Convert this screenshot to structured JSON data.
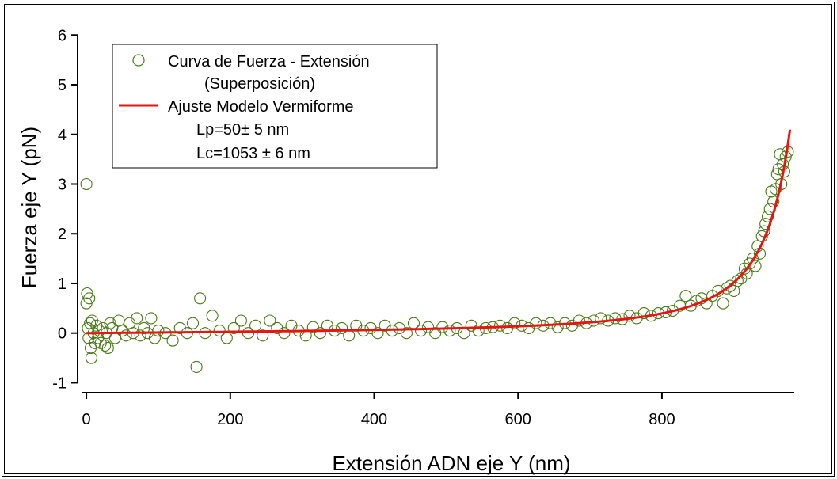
{
  "chart_data": {
    "type": "scatter",
    "xlabel": "Extensión ADN eje Y (nm)",
    "ylabel": "Fuerza eje Y (pN)",
    "xlim": [
      -10,
      985
    ],
    "ylim": [
      -1.2,
      6.1
    ],
    "xticks": [
      0,
      200,
      400,
      600,
      800
    ],
    "yticks": [
      -1,
      0,
      1,
      2,
      3,
      4,
      5,
      6
    ],
    "grid": false,
    "legend": {
      "placement": "top-left",
      "entries": [
        {
          "label": "Curva de Fuerza - Extensión",
          "label2": "(Superposición)",
          "marker": "open-circle"
        },
        {
          "label": "Ajuste Modelo Vermiforme",
          "marker": "line"
        }
      ],
      "annotations": [
        "Lp=50± 5 nm",
        "Lc=1053 ± 6 nm"
      ]
    },
    "series": [
      {
        "name": "Curva de Fuerza - Extensión",
        "label2": "(Superposición)",
        "kind": "scatter",
        "color": "#4a7a1a",
        "points": [
          [
            0,
            3.0
          ],
          [
            0,
            0.6
          ],
          [
            1,
            0.8
          ],
          [
            4,
            0.7
          ],
          [
            2,
            0.1
          ],
          [
            3,
            -0.1
          ],
          [
            5,
            0.2
          ],
          [
            6,
            -0.3
          ],
          [
            7,
            -0.5
          ],
          [
            8,
            0.25
          ],
          [
            10,
            0.0
          ],
          [
            12,
            -0.2
          ],
          [
            14,
            0.15
          ],
          [
            16,
            -0.1
          ],
          [
            18,
            0.05
          ],
          [
            20,
            -0.2
          ],
          [
            23,
            0.1
          ],
          [
            26,
            -0.25
          ],
          [
            28,
            0.0
          ],
          [
            30,
            -0.3
          ],
          [
            33,
            0.2
          ],
          [
            36,
            0.1
          ],
          [
            40,
            -0.1
          ],
          [
            45,
            0.25
          ],
          [
            50,
            0.05
          ],
          [
            55,
            -0.05
          ],
          [
            60,
            0.2
          ],
          [
            65,
            0.0
          ],
          [
            70,
            0.3
          ],
          [
            75,
            -0.05
          ],
          [
            80,
            0.1
          ],
          [
            85,
            0.0
          ],
          [
            90,
            0.3
          ],
          [
            95,
            -0.1
          ],
          [
            100,
            0.05
          ],
          [
            110,
            0.0
          ],
          [
            120,
            -0.15
          ],
          [
            130,
            0.1
          ],
          [
            140,
            0.0
          ],
          [
            148,
            0.2
          ],
          [
            153,
            -0.68
          ],
          [
            158,
            0.7
          ],
          [
            165,
            0.0
          ],
          [
            175,
            0.35
          ],
          [
            185,
            0.05
          ],
          [
            195,
            -0.1
          ],
          [
            205,
            0.1
          ],
          [
            215,
            0.25
          ],
          [
            225,
            0.0
          ],
          [
            235,
            0.15
          ],
          [
            245,
            -0.05
          ],
          [
            255,
            0.25
          ],
          [
            265,
            0.1
          ],
          [
            275,
            0.0
          ],
          [
            285,
            0.15
          ],
          [
            295,
            0.05
          ],
          [
            305,
            -0.05
          ],
          [
            315,
            0.12
          ],
          [
            325,
            0.0
          ],
          [
            335,
            0.15
          ],
          [
            345,
            0.05
          ],
          [
            355,
            0.1
          ],
          [
            365,
            -0.05
          ],
          [
            375,
            0.15
          ],
          [
            385,
            0.05
          ],
          [
            395,
            0.1
          ],
          [
            405,
            0.0
          ],
          [
            415,
            0.15
          ],
          [
            425,
            0.05
          ],
          [
            435,
            0.1
          ],
          [
            445,
            0.0
          ],
          [
            455,
            0.2
          ],
          [
            465,
            0.05
          ],
          [
            475,
            0.12
          ],
          [
            485,
            0.0
          ],
          [
            495,
            0.12
          ],
          [
            505,
            0.05
          ],
          [
            515,
            0.1
          ],
          [
            525,
            0.0
          ],
          [
            535,
            0.15
          ],
          [
            545,
            0.05
          ],
          [
            555,
            0.1
          ],
          [
            565,
            0.12
          ],
          [
            575,
            0.15
          ],
          [
            585,
            0.1
          ],
          [
            595,
            0.2
          ],
          [
            605,
            0.15
          ],
          [
            615,
            0.1
          ],
          [
            625,
            0.2
          ],
          [
            635,
            0.15
          ],
          [
            645,
            0.2
          ],
          [
            655,
            0.12
          ],
          [
            665,
            0.2
          ],
          [
            675,
            0.15
          ],
          [
            685,
            0.25
          ],
          [
            695,
            0.2
          ],
          [
            705,
            0.25
          ],
          [
            715,
            0.3
          ],
          [
            725,
            0.25
          ],
          [
            735,
            0.3
          ],
          [
            745,
            0.28
          ],
          [
            755,
            0.35
          ],
          [
            765,
            0.3
          ],
          [
            775,
            0.4
          ],
          [
            785,
            0.35
          ],
          [
            795,
            0.4
          ],
          [
            805,
            0.42
          ],
          [
            815,
            0.45
          ],
          [
            825,
            0.55
          ],
          [
            833,
            0.75
          ],
          [
            840,
            0.55
          ],
          [
            848,
            0.65
          ],
          [
            855,
            0.7
          ],
          [
            862,
            0.6
          ],
          [
            870,
            0.75
          ],
          [
            878,
            0.85
          ],
          [
            885,
            0.6
          ],
          [
            890,
            0.9
          ],
          [
            895,
            0.95
          ],
          [
            900,
            0.85
          ],
          [
            905,
            1.05
          ],
          [
            910,
            1.1
          ],
          [
            915,
            1.3
          ],
          [
            918,
            1.2
          ],
          [
            922,
            1.4
          ],
          [
            926,
            1.5
          ],
          [
            930,
            1.35
          ],
          [
            933,
            1.75
          ],
          [
            936,
            1.6
          ],
          [
            939,
            1.95
          ],
          [
            942,
            2.05
          ],
          [
            944,
            2.2
          ],
          [
            947,
            2.35
          ],
          [
            950,
            2.5
          ],
          [
            952,
            2.85
          ],
          [
            955,
            2.65
          ],
          [
            958,
            2.9
          ],
          [
            960,
            3.2
          ],
          [
            962,
            3.3
          ],
          [
            964,
            3.6
          ],
          [
            966,
            3.0
          ],
          [
            968,
            3.4
          ],
          [
            970,
            3.25
          ],
          [
            972,
            3.55
          ],
          [
            975,
            3.65
          ]
        ]
      },
      {
        "name": "Ajuste Modelo Vermiforme",
        "kind": "line",
        "color": "#e8140f",
        "model": {
          "Lp": 50,
          "Lc": 1053,
          "kT": 4.1
        },
        "x_range": [
          0,
          978
        ]
      }
    ]
  }
}
